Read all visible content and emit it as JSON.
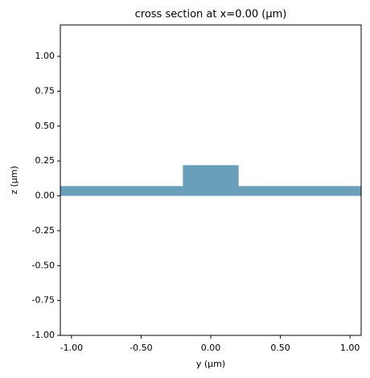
{
  "chart_data": {
    "type": "cross_section",
    "title": "cross section at x=0.00 (μm)",
    "x_label": "y (μm)",
    "y_label": "z (μm)",
    "color": "#699fbb",
    "rects": [
      {
        "x": [
          -1.08,
          1.08
        ],
        "y": [
          0,
          0.07
        ]
      },
      {
        "x": [
          -0.2,
          0.2
        ],
        "y": [
          0,
          0.22
        ]
      }
    ],
    "xlim": [
      -1.08,
      1.08
    ],
    "ylim": [
      -1,
      1.225
    ],
    "xticks": [
      {
        "value": -1,
        "label": "-1.00"
      },
      {
        "value": -0.5,
        "label": "-0.50"
      },
      {
        "value": 0,
        "label": "0.00"
      },
      {
        "value": 0.5,
        "label": "0.50"
      },
      {
        "value": 1,
        "label": "1.00"
      }
    ],
    "yticks": [
      {
        "value": -1,
        "label": "-1.00"
      },
      {
        "value": -0.75,
        "label": "-0.75"
      },
      {
        "value": -0.5,
        "label": "-0.50"
      },
      {
        "value": -0.25,
        "label": "-0.25"
      },
      {
        "value": 0,
        "label": "0.00"
      },
      {
        "value": 0.25,
        "label": "0.25"
      },
      {
        "value": 0.5,
        "label": "0.50"
      },
      {
        "value": 0.75,
        "label": "0.75"
      },
      {
        "value": 1,
        "label": "1.00"
      }
    ]
  }
}
